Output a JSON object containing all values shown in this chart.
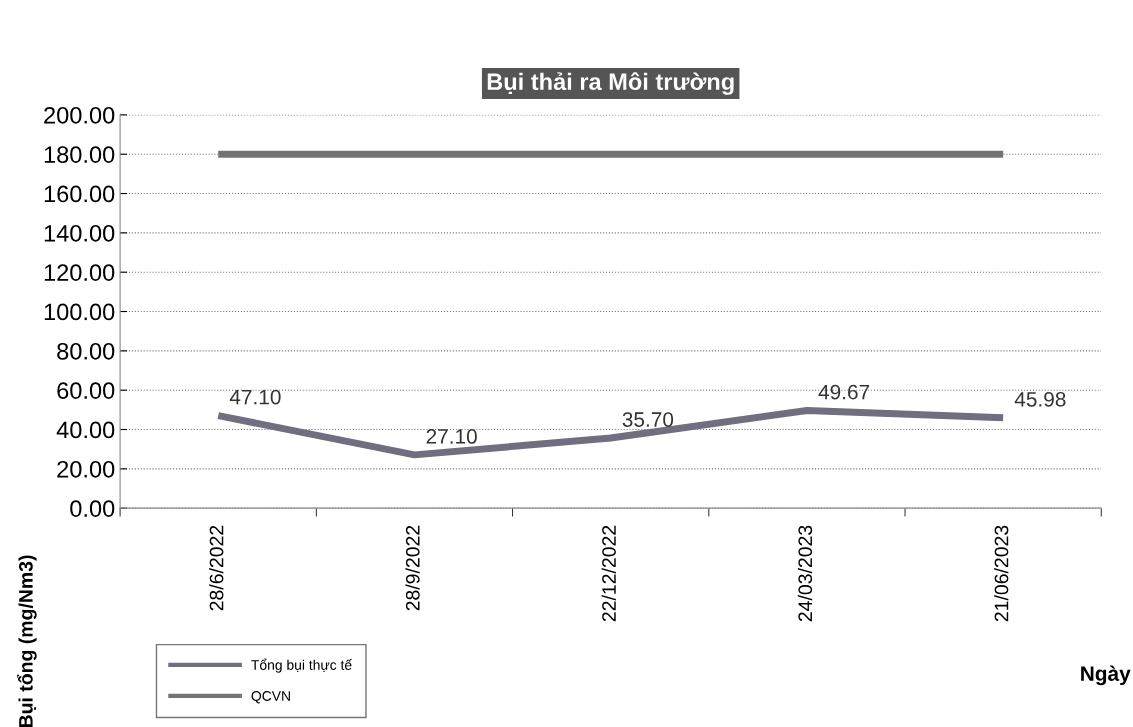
{
  "chart_data": {
    "type": "line",
    "title": "Bụi thải ra Môi trường",
    "xlabel": "Ngày",
    "ylabel": "Bụi tổng (mg/Nm3)",
    "categories": [
      "28/6/2022",
      "28/9/2022",
      "22/12/2022",
      "24/03/2023",
      "21/06/2023"
    ],
    "series": [
      {
        "name": "Tổng bụi thực tế",
        "color": "#6f6f80",
        "values": [
          47.1,
          27.1,
          35.7,
          49.67,
          45.98
        ],
        "value_labels": [
          "47.10",
          "27.10",
          "35.70",
          "49.67",
          "45.98"
        ]
      },
      {
        "name": "QCVN",
        "color": "#737373",
        "values": [
          180,
          180,
          180,
          180,
          180
        ]
      }
    ],
    "ylim": [
      0,
      200
    ],
    "yticks": [
      {
        "value": 0,
        "label": "0.00"
      },
      {
        "value": 20,
        "label": "20.00"
      },
      {
        "value": 40,
        "label": "40.00"
      },
      {
        "value": 60,
        "label": "60.00"
      },
      {
        "value": 80,
        "label": "80.00"
      },
      {
        "value": 100,
        "label": "100.00"
      },
      {
        "value": 120,
        "label": "120.00"
      },
      {
        "value": 140,
        "label": "140.00"
      },
      {
        "value": 160,
        "label": "160.00"
      },
      {
        "value": 180,
        "label": "180.00"
      },
      {
        "value": 200,
        "label": "200.00"
      }
    ],
    "grid": "y",
    "legend": "bottom left",
    "marker": "none",
    "line_style": "solid"
  }
}
